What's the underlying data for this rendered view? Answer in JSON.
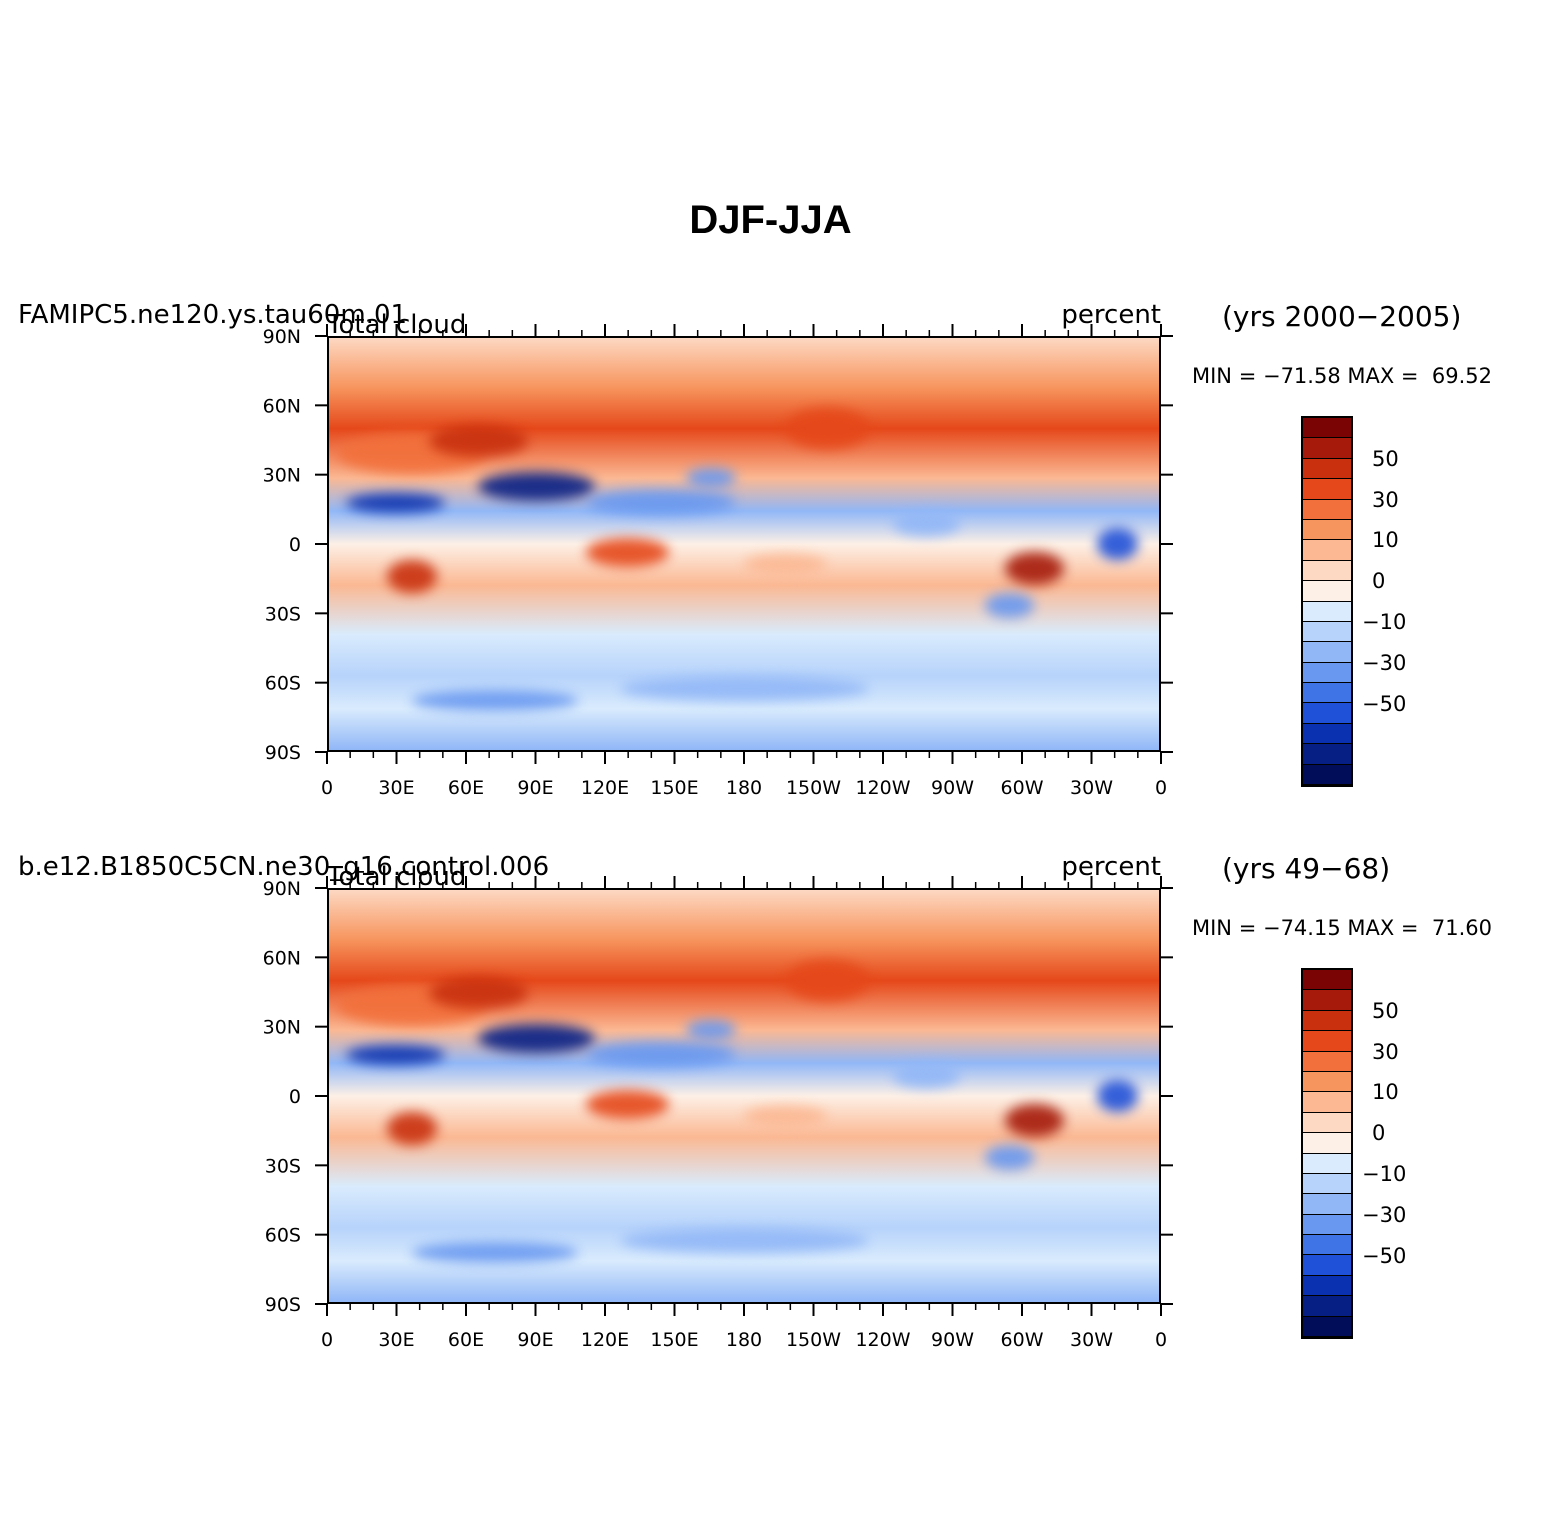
{
  "title": "DJF-JJA",
  "panels": [
    {
      "case": "FAMIPC5.ne120.ys.tau60m.01",
      "variable": "Total cloud",
      "units": "percent",
      "years": "(yrs 2000−2005)",
      "minmax": "MIN = −71.58 MAX =  69.52"
    },
    {
      "case": "b.e12.B1850C5CN.ne30_g16.control.006",
      "variable": "Total cloud",
      "units": "percent",
      "years": "(yrs 49−68)",
      "minmax": "MIN = −74.15 MAX =  71.60"
    }
  ],
  "lat_labels": [
    "90N",
    "60N",
    "30N",
    "0",
    "30S",
    "60S",
    "90S"
  ],
  "lon_labels": [
    "0",
    "30E",
    "60E",
    "90E",
    "120E",
    "150E",
    "180",
    "150W",
    "120W",
    "90W",
    "60W",
    "30W",
    "0"
  ],
  "colorbar": {
    "labels": [
      "50",
      "30",
      "10",
      "0",
      "−10",
      "−30",
      "−50"
    ],
    "colors": [
      "#7a0403",
      "#a51a0a",
      "#c8300e",
      "#e5481a",
      "#f2703b",
      "#f7955e",
      "#fbb893",
      "#fdd8c2",
      "#fdf0e6",
      "#d9ebfd",
      "#b7d3fb",
      "#91b7f7",
      "#6898f0",
      "#3f74e6",
      "#1f50d8",
      "#0a32b0",
      "#061f85",
      "#020d5a"
    ]
  }
}
